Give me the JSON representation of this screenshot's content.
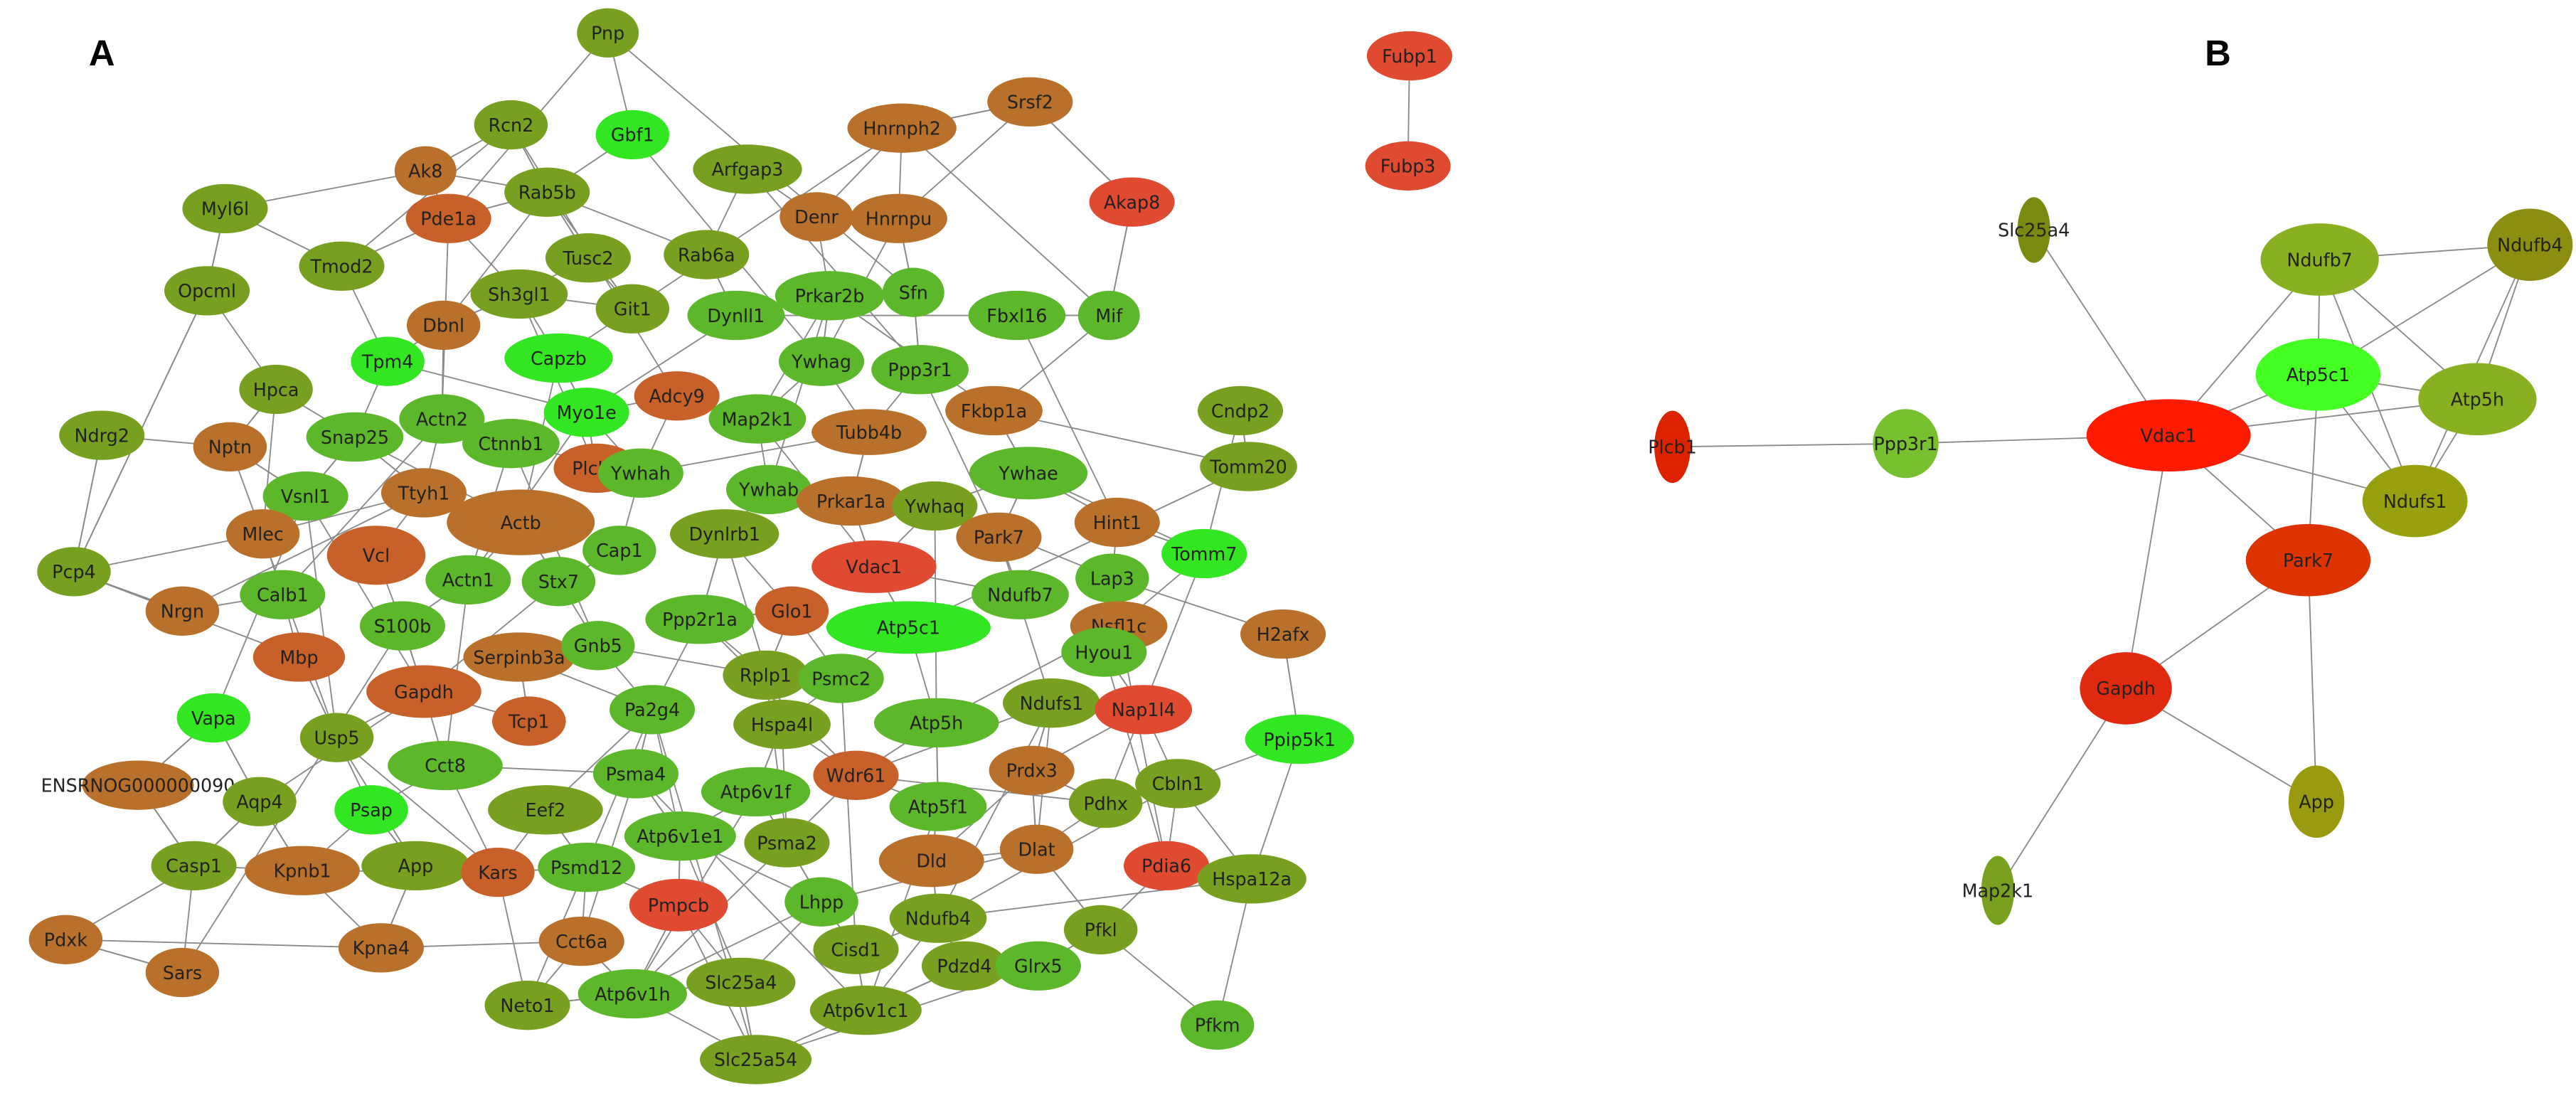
{
  "panels": [
    {
      "label": "A"
    },
    {
      "label": "B"
    }
  ],
  "network_a": {
    "nodes": [
      {
        "label": "Pnp",
        "color": "#77a020"
      },
      {
        "label": "Rcn2",
        "color": "#77a020"
      },
      {
        "label": "Gbf1",
        "color": "#33e622"
      },
      {
        "label": "Arfgap3",
        "color": "#77a020"
      },
      {
        "label": "Ak8",
        "color": "#b8702a"
      },
      {
        "label": "Hnrnph2",
        "color": "#b8702a"
      },
      {
        "label": "Srsf2",
        "color": "#b8702a"
      },
      {
        "label": "Rab5b",
        "color": "#77a020"
      },
      {
        "label": "Pde1a",
        "color": "#c8602a"
      },
      {
        "label": "Myl6l",
        "color": "#77a020"
      },
      {
        "label": "Denr",
        "color": "#b8702a"
      },
      {
        "label": "Hnrnpu",
        "color": "#b8702a"
      },
      {
        "label": "Akap8",
        "color": "#e04a30"
      },
      {
        "label": "Tusc2",
        "color": "#77a020"
      },
      {
        "label": "Rab6a",
        "color": "#77a020"
      },
      {
        "label": "Tmod2",
        "color": "#77a020"
      },
      {
        "label": "Sh3gl1",
        "color": "#77a020"
      },
      {
        "label": "Sfn",
        "color": "#5cb82a"
      },
      {
        "label": "Git1",
        "color": "#77a020"
      },
      {
        "label": "Dynll1",
        "color": "#5cb82a"
      },
      {
        "label": "Prkar2b",
        "color": "#5cb82a"
      },
      {
        "label": "Fbxl16",
        "color": "#5cb82a"
      },
      {
        "label": "Mif",
        "color": "#5cb82a"
      },
      {
        "label": "Opcml",
        "color": "#77a020"
      },
      {
        "label": "Dbnl",
        "color": "#b8702a"
      },
      {
        "label": "Tpm4",
        "color": "#33e622"
      },
      {
        "label": "Capzb",
        "color": "#33e622"
      },
      {
        "label": "Ywhag",
        "color": "#5cb82a"
      },
      {
        "label": "Ppp3r1",
        "color": "#5cb82a"
      },
      {
        "label": "Fkbp1a",
        "color": "#b8702a"
      },
      {
        "label": "Hpca",
        "color": "#77a020"
      },
      {
        "label": "Cndp2",
        "color": "#77a020"
      },
      {
        "label": "Adcy9",
        "color": "#c8602a"
      },
      {
        "label": "Myo1e",
        "color": "#33e622"
      },
      {
        "label": "Map2k1",
        "color": "#5cb82a"
      },
      {
        "label": "Actn2",
        "color": "#5cb82a"
      },
      {
        "label": "Snap25",
        "color": "#5cb82a"
      },
      {
        "label": "Ctnnb1",
        "color": "#5cb82a"
      },
      {
        "label": "Tubb4b",
        "color": "#b8702a"
      },
      {
        "label": "Ndrg2",
        "color": "#77a020"
      },
      {
        "label": "Nptn",
        "color": "#b8702a"
      },
      {
        "label": "Ttyh1",
        "color": "#b8702a"
      },
      {
        "label": "Plcb1",
        "color": "#c8602a"
      },
      {
        "label": "Ywhah",
        "color": "#5cb82a"
      },
      {
        "label": "Ywhab",
        "color": "#5cb82a"
      },
      {
        "label": "Ywhae",
        "color": "#5cb82a"
      },
      {
        "label": "Tomm20",
        "color": "#77a020"
      },
      {
        "label": "Vsnl1",
        "color": "#5cb82a"
      },
      {
        "label": "Prkar1a",
        "color": "#b8702a"
      },
      {
        "label": "Ywhaq",
        "color": "#77a020"
      },
      {
        "label": "Actb",
        "color": "#b8702a"
      },
      {
        "label": "Mlec",
        "color": "#b8702a"
      },
      {
        "label": "Hint1",
        "color": "#b8702a"
      },
      {
        "label": "Dynlrb1",
        "color": "#77a020"
      },
      {
        "label": "Park7",
        "color": "#b8702a"
      },
      {
        "label": "Vcl",
        "color": "#c8602a"
      },
      {
        "label": "Cap1",
        "color": "#5cb82a"
      },
      {
        "label": "Tomm7",
        "color": "#33e622"
      },
      {
        "label": "Vdac1",
        "color": "#e04a30"
      },
      {
        "label": "Pcp4",
        "color": "#77a020"
      },
      {
        "label": "Actn1",
        "color": "#5cb82a"
      },
      {
        "label": "Stx7",
        "color": "#5cb82a"
      },
      {
        "label": "Lap3",
        "color": "#5cb82a"
      },
      {
        "label": "Ndufb7",
        "color": "#5cb82a"
      },
      {
        "label": "Calb1",
        "color": "#5cb82a"
      },
      {
        "label": "Nrgn",
        "color": "#b8702a"
      },
      {
        "label": "S100b",
        "color": "#5cb82a"
      },
      {
        "label": "Ppp2r1a",
        "color": "#5cb82a"
      },
      {
        "label": "Glo1",
        "color": "#c8602a"
      },
      {
        "label": "Atp5c1",
        "color": "#33e622"
      },
      {
        "label": "Nsfl1c",
        "color": "#b8702a"
      },
      {
        "label": "H2afx",
        "color": "#b8702a"
      },
      {
        "label": "Mbp",
        "color": "#c8602a"
      },
      {
        "label": "Serpinb3a",
        "color": "#b8702a"
      },
      {
        "label": "Gnb5",
        "color": "#5cb82a"
      },
      {
        "label": "Hyou1",
        "color": "#5cb82a"
      },
      {
        "label": "Rplp1",
        "color": "#77a020"
      },
      {
        "label": "Psmc2",
        "color": "#5cb82a"
      },
      {
        "label": "Gapdh",
        "color": "#c8602a"
      },
      {
        "label": "Ndufs1",
        "color": "#77a020"
      },
      {
        "label": "Nap1l4",
        "color": "#e04a30"
      },
      {
        "label": "Vapa",
        "color": "#33e622"
      },
      {
        "label": "Pa2g4",
        "color": "#5cb82a"
      },
      {
        "label": "Tcp1",
        "color": "#c8602a"
      },
      {
        "label": "Hspa4l",
        "color": "#77a020"
      },
      {
        "label": "Atp5h",
        "color": "#5cb82a"
      },
      {
        "label": "Ppip5k1",
        "color": "#33e622"
      },
      {
        "label": "Usp5",
        "color": "#77a020"
      },
      {
        "label": "Cct8",
        "color": "#5cb82a"
      },
      {
        "label": "Psma4",
        "color": "#5cb82a"
      },
      {
        "label": "Wdr61",
        "color": "#c8602a"
      },
      {
        "label": "Prdx3",
        "color": "#b8702a"
      },
      {
        "label": "ENSRNOG000000090",
        "color": "#b8702a"
      },
      {
        "label": "Aqp4",
        "color": "#77a020"
      },
      {
        "label": "Cbln1",
        "color": "#77a020"
      },
      {
        "label": "Atp6v1f",
        "color": "#5cb82a"
      },
      {
        "label": "Eef2",
        "color": "#77a020"
      },
      {
        "label": "Psap",
        "color": "#33e622"
      },
      {
        "label": "Atp5f1",
        "color": "#5cb82a"
      },
      {
        "label": "Pdhx",
        "color": "#77a020"
      },
      {
        "label": "Atp6v1e1",
        "color": "#5cb82a"
      },
      {
        "label": "Psma2",
        "color": "#77a020"
      },
      {
        "label": "Casp1",
        "color": "#77a020"
      },
      {
        "label": "Kpnb1",
        "color": "#b8702a"
      },
      {
        "label": "App",
        "color": "#77a020"
      },
      {
        "label": "Kars",
        "color": "#c8602a"
      },
      {
        "label": "Psmd12",
        "color": "#5cb82a"
      },
      {
        "label": "Dld",
        "color": "#b8702a"
      },
      {
        "label": "Dlat",
        "color": "#b8702a"
      },
      {
        "label": "Pdia6",
        "color": "#e04a30"
      },
      {
        "label": "Hspa12a",
        "color": "#77a020"
      },
      {
        "label": "Pmpcb",
        "color": "#e04a30"
      },
      {
        "label": "Lhpp",
        "color": "#5cb82a"
      },
      {
        "label": "Ndufb4",
        "color": "#77a020"
      },
      {
        "label": "Pdxk",
        "color": "#b8702a"
      },
      {
        "label": "Kpna4",
        "color": "#b8702a"
      },
      {
        "label": "Cct6a",
        "color": "#b8702a"
      },
      {
        "label": "Cisd1",
        "color": "#77a020"
      },
      {
        "label": "Pfkl",
        "color": "#77a020"
      },
      {
        "label": "Sars",
        "color": "#b8702a"
      },
      {
        "label": "Pdzd4",
        "color": "#77a020"
      },
      {
        "label": "Glrx5",
        "color": "#5cb82a"
      },
      {
        "label": "Neto1",
        "color": "#77a020"
      },
      {
        "label": "Atp6v1h",
        "color": "#5cb82a"
      },
      {
        "label": "Slc25a4",
        "color": "#77a020"
      },
      {
        "label": "Atp6v1c1",
        "color": "#77a020"
      },
      {
        "label": "Pfkm",
        "color": "#5cb82a"
      },
      {
        "label": "Slc25a54",
        "color": "#77a020"
      },
      {
        "label": "Fubp1",
        "color": "#e04a30"
      },
      {
        "label": "Fubp3",
        "color": "#e04a30"
      }
    ]
  },
  "network_b": {
    "nodes": [
      {
        "label": "Slc25a4",
        "color": "#7a8a10"
      },
      {
        "label": "Ndufb7",
        "color": "#88b020"
      },
      {
        "label": "Ndufb4",
        "color": "#8d8d12"
      },
      {
        "label": "Atp5c1",
        "color": "#44ff22"
      },
      {
        "label": "Atp5h",
        "color": "#88b020"
      },
      {
        "label": "Vdac1",
        "color": "#ff1a00"
      },
      {
        "label": "Plcb1",
        "color": "#dd2200"
      },
      {
        "label": "Ppp3r1",
        "color": "#77c030"
      },
      {
        "label": "Ndufs1",
        "color": "#99a010"
      },
      {
        "label": "Park7",
        "color": "#dd3300"
      },
      {
        "label": "Gapdh",
        "color": "#e02a10"
      },
      {
        "label": "App",
        "color": "#9a9a10"
      },
      {
        "label": "Map2k1",
        "color": "#7aa020"
      }
    ]
  }
}
